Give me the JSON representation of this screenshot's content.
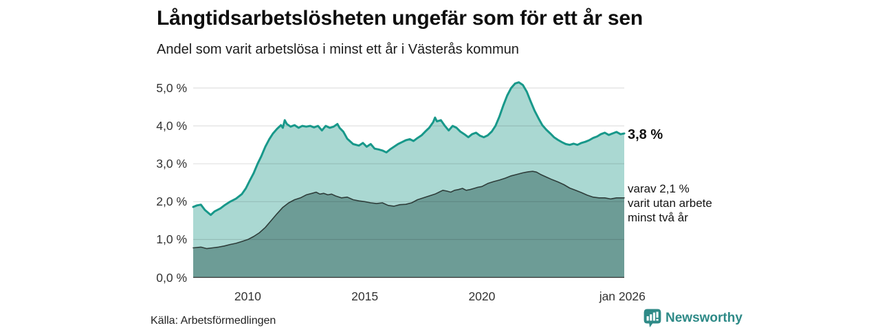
{
  "header": {
    "title": "Långtidsarbetslösheten ungefär som för ett år sen",
    "subtitle": "Andel som varit arbetslösa i minst ett år i Västerås kommun"
  },
  "chart_data": {
    "type": "area",
    "title": "Långtidsarbetslösheten ungefär som för ett år sen",
    "subtitle": "Andel som varit arbetslösa i minst ett år i Västerås kommun",
    "unit": "%",
    "grid": true,
    "x_domain": [
      2007.67,
      2026.08
    ],
    "ylim": [
      0,
      5
    ],
    "y_ticks": [
      {
        "value": 5,
        "label": "5,0 %"
      },
      {
        "value": 4,
        "label": "4,0 %"
      },
      {
        "value": 3,
        "label": "3,0 %"
      },
      {
        "value": 2,
        "label": "2,0 %"
      },
      {
        "value": 1,
        "label": "1,0 %"
      },
      {
        "value": 0,
        "label": "0,0 %"
      }
    ],
    "x_ticks": [
      {
        "value": 2010,
        "label": "2010"
      },
      {
        "value": 2015,
        "label": "2015"
      },
      {
        "value": 2020,
        "label": "2020"
      },
      {
        "value": 2026.0,
        "label": "jan 2026"
      }
    ],
    "series": [
      {
        "name": "Andel arbetslösa minst ett år",
        "line_color": "#18988a",
        "fill_color": "#aad8d2",
        "line_width": 3,
        "end_value": "3,8 %",
        "points": [
          [
            2007.67,
            1.86
          ],
          [
            2007.83,
            1.9
          ],
          [
            2008.0,
            1.92
          ],
          [
            2008.17,
            1.78
          ],
          [
            2008.42,
            1.65
          ],
          [
            2008.58,
            1.74
          ],
          [
            2008.83,
            1.82
          ],
          [
            2009.0,
            1.9
          ],
          [
            2009.25,
            2.0
          ],
          [
            2009.5,
            2.08
          ],
          [
            2009.75,
            2.2
          ],
          [
            2009.92,
            2.35
          ],
          [
            2010.08,
            2.55
          ],
          [
            2010.25,
            2.75
          ],
          [
            2010.42,
            3.0
          ],
          [
            2010.58,
            3.2
          ],
          [
            2010.75,
            3.45
          ],
          [
            2010.92,
            3.65
          ],
          [
            2011.08,
            3.8
          ],
          [
            2011.25,
            3.92
          ],
          [
            2011.42,
            4.02
          ],
          [
            2011.5,
            3.95
          ],
          [
            2011.58,
            4.15
          ],
          [
            2011.67,
            4.05
          ],
          [
            2011.83,
            3.98
          ],
          [
            2012.0,
            4.02
          ],
          [
            2012.17,
            3.95
          ],
          [
            2012.33,
            4.0
          ],
          [
            2012.5,
            3.98
          ],
          [
            2012.67,
            4.0
          ],
          [
            2012.83,
            3.96
          ],
          [
            2013.0,
            4.0
          ],
          [
            2013.17,
            3.88
          ],
          [
            2013.33,
            4.0
          ],
          [
            2013.5,
            3.95
          ],
          [
            2013.67,
            3.98
          ],
          [
            2013.83,
            4.05
          ],
          [
            2013.92,
            3.95
          ],
          [
            2014.08,
            3.85
          ],
          [
            2014.25,
            3.66
          ],
          [
            2014.5,
            3.52
          ],
          [
            2014.75,
            3.48
          ],
          [
            2014.92,
            3.55
          ],
          [
            2015.08,
            3.45
          ],
          [
            2015.25,
            3.52
          ],
          [
            2015.42,
            3.4
          ],
          [
            2015.58,
            3.38
          ],
          [
            2015.75,
            3.35
          ],
          [
            2015.92,
            3.3
          ],
          [
            2016.08,
            3.38
          ],
          [
            2016.25,
            3.45
          ],
          [
            2016.42,
            3.52
          ],
          [
            2016.58,
            3.57
          ],
          [
            2016.75,
            3.62
          ],
          [
            2016.92,
            3.65
          ],
          [
            2017.08,
            3.6
          ],
          [
            2017.25,
            3.68
          ],
          [
            2017.42,
            3.75
          ],
          [
            2017.58,
            3.85
          ],
          [
            2017.75,
            3.95
          ],
          [
            2017.92,
            4.1
          ],
          [
            2018.0,
            4.22
          ],
          [
            2018.08,
            4.12
          ],
          [
            2018.25,
            4.15
          ],
          [
            2018.42,
            4.0
          ],
          [
            2018.58,
            3.88
          ],
          [
            2018.75,
            4.0
          ],
          [
            2018.92,
            3.95
          ],
          [
            2019.08,
            3.85
          ],
          [
            2019.25,
            3.78
          ],
          [
            2019.42,
            3.7
          ],
          [
            2019.58,
            3.78
          ],
          [
            2019.75,
            3.82
          ],
          [
            2019.92,
            3.74
          ],
          [
            2020.08,
            3.7
          ],
          [
            2020.25,
            3.75
          ],
          [
            2020.42,
            3.85
          ],
          [
            2020.58,
            4.0
          ],
          [
            2020.75,
            4.25
          ],
          [
            2020.92,
            4.55
          ],
          [
            2021.08,
            4.8
          ],
          [
            2021.25,
            5.0
          ],
          [
            2021.42,
            5.12
          ],
          [
            2021.58,
            5.15
          ],
          [
            2021.75,
            5.08
          ],
          [
            2021.92,
            4.9
          ],
          [
            2022.08,
            4.65
          ],
          [
            2022.25,
            4.4
          ],
          [
            2022.42,
            4.2
          ],
          [
            2022.58,
            4.02
          ],
          [
            2022.75,
            3.9
          ],
          [
            2022.92,
            3.8
          ],
          [
            2023.08,
            3.7
          ],
          [
            2023.25,
            3.63
          ],
          [
            2023.42,
            3.57
          ],
          [
            2023.58,
            3.52
          ],
          [
            2023.75,
            3.5
          ],
          [
            2023.92,
            3.53
          ],
          [
            2024.08,
            3.5
          ],
          [
            2024.25,
            3.55
          ],
          [
            2024.42,
            3.58
          ],
          [
            2024.58,
            3.62
          ],
          [
            2024.75,
            3.68
          ],
          [
            2024.92,
            3.72
          ],
          [
            2025.08,
            3.78
          ],
          [
            2025.25,
            3.82
          ],
          [
            2025.42,
            3.76
          ],
          [
            2025.58,
            3.8
          ],
          [
            2025.75,
            3.84
          ],
          [
            2025.92,
            3.78
          ],
          [
            2026.08,
            3.8
          ]
        ]
      },
      {
        "name": "Andel arbetslösa minst två år",
        "line_color": "#2e3d3a",
        "fill_color": "#6d9c96",
        "line_width": 1.6,
        "end_value": "2,1 %",
        "points": [
          [
            2007.67,
            0.78
          ],
          [
            2008.0,
            0.8
          ],
          [
            2008.25,
            0.76
          ],
          [
            2008.5,
            0.78
          ],
          [
            2008.75,
            0.8
          ],
          [
            2009.0,
            0.83
          ],
          [
            2009.25,
            0.87
          ],
          [
            2009.5,
            0.9
          ],
          [
            2009.75,
            0.95
          ],
          [
            2010.0,
            1.0
          ],
          [
            2010.25,
            1.08
          ],
          [
            2010.5,
            1.18
          ],
          [
            2010.75,
            1.32
          ],
          [
            2011.0,
            1.5
          ],
          [
            2011.25,
            1.68
          ],
          [
            2011.5,
            1.85
          ],
          [
            2011.75,
            1.97
          ],
          [
            2012.0,
            2.05
          ],
          [
            2012.25,
            2.1
          ],
          [
            2012.5,
            2.18
          ],
          [
            2012.75,
            2.22
          ],
          [
            2012.92,
            2.25
          ],
          [
            2013.08,
            2.2
          ],
          [
            2013.25,
            2.22
          ],
          [
            2013.42,
            2.18
          ],
          [
            2013.58,
            2.2
          ],
          [
            2013.75,
            2.15
          ],
          [
            2014.0,
            2.1
          ],
          [
            2014.25,
            2.12
          ],
          [
            2014.5,
            2.05
          ],
          [
            2014.75,
            2.02
          ],
          [
            2015.0,
            2.0
          ],
          [
            2015.25,
            1.97
          ],
          [
            2015.5,
            1.95
          ],
          [
            2015.75,
            1.97
          ],
          [
            2016.0,
            1.9
          ],
          [
            2016.25,
            1.88
          ],
          [
            2016.5,
            1.92
          ],
          [
            2016.75,
            1.93
          ],
          [
            2017.0,
            1.97
          ],
          [
            2017.25,
            2.05
          ],
          [
            2017.5,
            2.1
          ],
          [
            2017.75,
            2.15
          ],
          [
            2018.0,
            2.2
          ],
          [
            2018.17,
            2.25
          ],
          [
            2018.33,
            2.3
          ],
          [
            2018.5,
            2.28
          ],
          [
            2018.67,
            2.25
          ],
          [
            2018.83,
            2.3
          ],
          [
            2019.0,
            2.32
          ],
          [
            2019.17,
            2.35
          ],
          [
            2019.33,
            2.3
          ],
          [
            2019.5,
            2.32
          ],
          [
            2019.67,
            2.35
          ],
          [
            2019.83,
            2.38
          ],
          [
            2020.0,
            2.4
          ],
          [
            2020.25,
            2.48
          ],
          [
            2020.5,
            2.53
          ],
          [
            2020.75,
            2.57
          ],
          [
            2021.0,
            2.62
          ],
          [
            2021.25,
            2.68
          ],
          [
            2021.5,
            2.72
          ],
          [
            2021.75,
            2.76
          ],
          [
            2022.0,
            2.79
          ],
          [
            2022.17,
            2.8
          ],
          [
            2022.33,
            2.78
          ],
          [
            2022.5,
            2.72
          ],
          [
            2022.75,
            2.65
          ],
          [
            2023.0,
            2.58
          ],
          [
            2023.25,
            2.52
          ],
          [
            2023.5,
            2.45
          ],
          [
            2023.75,
            2.36
          ],
          [
            2024.0,
            2.3
          ],
          [
            2024.25,
            2.24
          ],
          [
            2024.5,
            2.17
          ],
          [
            2024.75,
            2.12
          ],
          [
            2025.0,
            2.1
          ],
          [
            2025.25,
            2.1
          ],
          [
            2025.5,
            2.07
          ],
          [
            2025.75,
            2.1
          ],
          [
            2026.08,
            2.1
          ]
        ]
      }
    ],
    "annotations": {
      "end_value": "3,8 %",
      "secondary_lines": [
        "varav 2,1 %",
        "varit utan arbete",
        "minst två år"
      ]
    },
    "legend_position": "none"
  },
  "footer": {
    "source": "Källa: Arbetsförmedlingen",
    "brand": "Newsworthy"
  },
  "colors": {
    "accent_teal": "#18988a",
    "light_fill": "#aad8d2",
    "dark_fill": "#6d9c96",
    "dark_line": "#2e3d3a",
    "brand_teal": "#2e8a87",
    "grid": "#e0e0e0",
    "axis": "#333333"
  }
}
